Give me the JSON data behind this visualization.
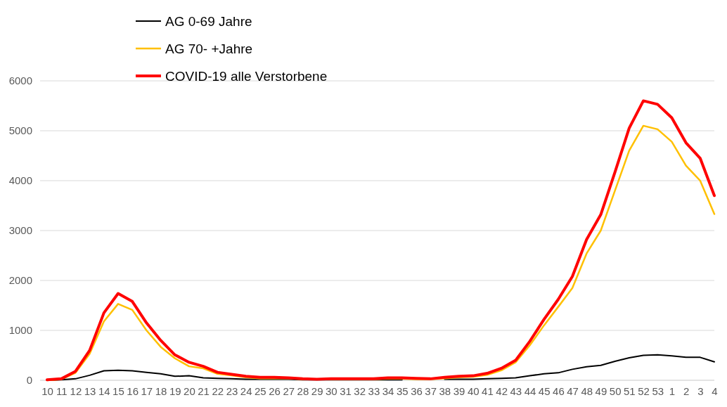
{
  "chart_data": {
    "type": "line",
    "categories": [
      "10",
      "11",
      "12",
      "13",
      "14",
      "15",
      "16",
      "17",
      "18",
      "19",
      "20",
      "21",
      "22",
      "23",
      "24",
      "25",
      "26",
      "27",
      "28",
      "29",
      "30",
      "31",
      "32",
      "33",
      "34",
      "35",
      "36",
      "37",
      "38",
      "39",
      "40",
      "41",
      "42",
      "43",
      "44",
      "45",
      "46",
      "47",
      "48",
      "49",
      "50",
      "51",
      "52",
      "53",
      "1",
      "2",
      "3",
      "4"
    ],
    "series": [
      {
        "name": "AG 0-69 Jahre",
        "color": "#000000",
        "values": [
          0,
          10,
          30,
          100,
          190,
          200,
          190,
          160,
          130,
          80,
          90,
          50,
          40,
          30,
          20,
          20,
          20,
          20,
          10,
          10,
          10,
          10,
          10,
          10,
          10,
          10,
          null,
          null,
          20,
          20,
          20,
          30,
          40,
          50,
          90,
          130,
          150,
          220,
          270,
          300,
          380,
          450,
          500,
          510,
          490,
          460,
          460,
          370
        ]
      },
      {
        "name": "AG 70- +Jahre",
        "color": "#ffc000",
        "values": [
          0,
          20,
          150,
          530,
          1180,
          1530,
          1410,
          1000,
          670,
          440,
          280,
          240,
          130,
          100,
          60,
          40,
          40,
          40,
          20,
          20,
          20,
          20,
          20,
          20,
          30,
          30,
          20,
          20,
          40,
          60,
          70,
          110,
          200,
          360,
          700,
          1100,
          1470,
          1850,
          2540,
          3000,
          3800,
          4600,
          5100,
          5030,
          4780,
          4300,
          4000,
          3330
        ]
      },
      {
        "name": "COVID-19 alle Verstorbene",
        "color": "#ff0000",
        "values": [
          10,
          30,
          180,
          600,
          1350,
          1740,
          1580,
          1150,
          800,
          510,
          360,
          280,
          160,
          120,
          80,
          60,
          60,
          50,
          30,
          20,
          30,
          30,
          30,
          30,
          50,
          50,
          40,
          30,
          60,
          80,
          90,
          140,
          240,
          400,
          780,
          1220,
          1620,
          2080,
          2820,
          3320,
          4170,
          5050,
          5600,
          5530,
          5260,
          4760,
          4450,
          3700
        ]
      }
    ],
    "ylim": [
      0,
      6000
    ],
    "yticks": [
      0,
      1000,
      2000,
      3000,
      4000,
      5000,
      6000
    ],
    "grid": "y",
    "legend": "top left"
  }
}
